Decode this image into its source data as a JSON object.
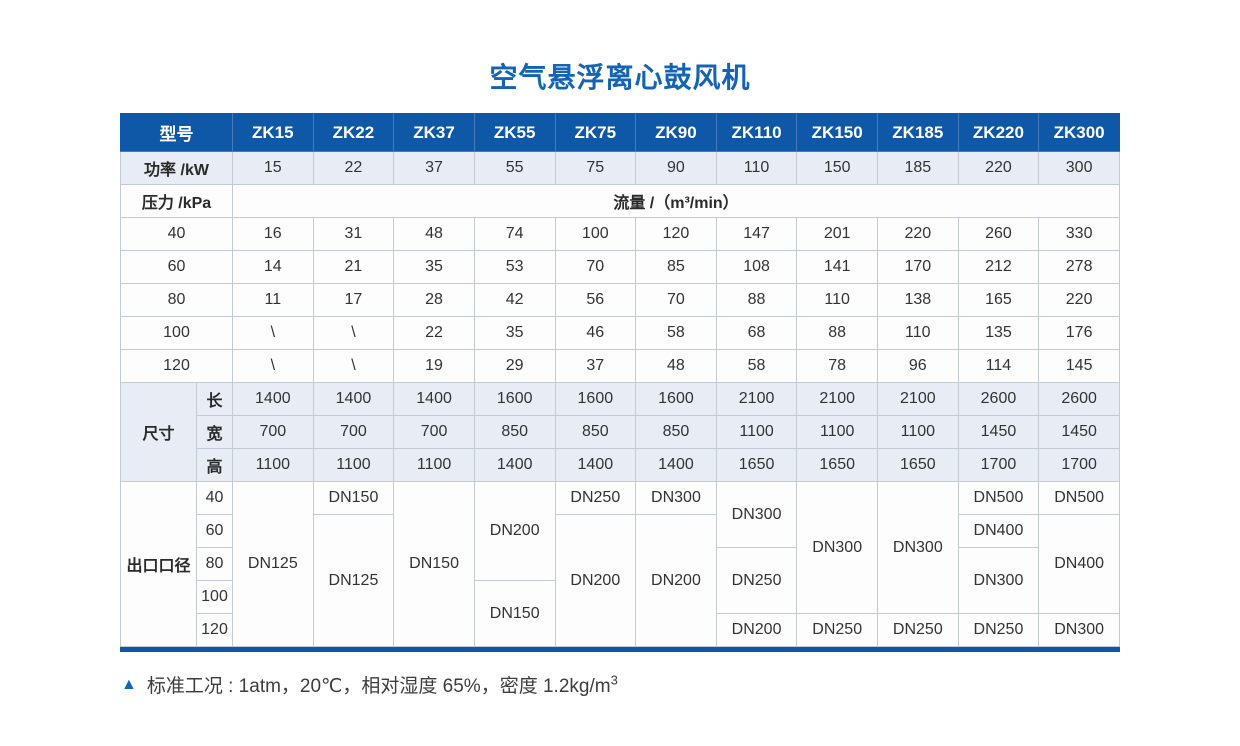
{
  "page": {
    "title": "空气悬浮离心鼓风机"
  },
  "colors": {
    "header_blue": "#0f57a7",
    "title_blue": "#1464b3",
    "row_highlight": "#e7ecf5",
    "cell_border": "#c1cad5",
    "bottom_bar": "#0f57a7",
    "body_text": "#333333"
  },
  "table": {
    "rows": [
      {
        "cls": "head",
        "cells": [
          {
            "t": "型号",
            "cs": 2
          },
          {
            "t": "ZK15"
          },
          {
            "t": "ZK22"
          },
          {
            "t": "ZK37"
          },
          {
            "t": "ZK55"
          },
          {
            "t": "ZK75"
          },
          {
            "t": "ZK90"
          },
          {
            "t": "ZK110"
          },
          {
            "t": "ZK150"
          },
          {
            "t": "ZK185"
          },
          {
            "t": "ZK220"
          },
          {
            "t": "ZK300"
          }
        ]
      },
      {
        "cls": "alt",
        "cells": [
          {
            "t": "功率 /kW",
            "cs": 2,
            "c": "lbl"
          },
          "15",
          "22",
          "37",
          "55",
          "75",
          "90",
          "110",
          "150",
          "185",
          "220",
          "300"
        ]
      },
      {
        "cells": [
          {
            "t": "压力 /kPa",
            "cs": 2,
            "c": "lbl"
          },
          {
            "t": "流量 /（m³/min）",
            "cs": 11,
            "c": "lbl"
          }
        ]
      },
      {
        "cells": [
          {
            "t": "40",
            "cs": 2
          },
          "16",
          "31",
          "48",
          "74",
          "100",
          "120",
          "147",
          "201",
          "220",
          "260",
          "330"
        ]
      },
      {
        "cells": [
          {
            "t": "60",
            "cs": 2
          },
          "14",
          "21",
          "35",
          "53",
          "70",
          "85",
          "108",
          "141",
          "170",
          "212",
          "278"
        ]
      },
      {
        "cells": [
          {
            "t": "80",
            "cs": 2
          },
          "11",
          "17",
          "28",
          "42",
          "56",
          "70",
          "88",
          "110",
          "138",
          "165",
          "220"
        ]
      },
      {
        "cells": [
          {
            "t": "100",
            "cs": 2
          },
          "\\",
          "\\",
          "22",
          "35",
          "46",
          "58",
          "68",
          "88",
          "110",
          "135",
          "176"
        ]
      },
      {
        "cells": [
          {
            "t": "120",
            "cs": 2
          },
          "\\",
          "\\",
          "19",
          "29",
          "37",
          "48",
          "58",
          "78",
          "96",
          "114",
          "145"
        ]
      },
      {
        "cls": "alt",
        "cells": [
          {
            "t": "尺寸",
            "rs": 3,
            "c": "lbl"
          },
          {
            "t": "长",
            "c": "lbl"
          },
          "1400",
          "1400",
          "1400",
          "1600",
          "1600",
          "1600",
          "2100",
          "2100",
          "2100",
          "2600",
          "2600"
        ]
      },
      {
        "cls": "alt",
        "cells": [
          {
            "t": "宽",
            "c": "lbl"
          },
          "700",
          "700",
          "700",
          "850",
          "850",
          "850",
          "1100",
          "1100",
          "1100",
          "1450",
          "1450"
        ]
      },
      {
        "cls": "alt",
        "cells": [
          {
            "t": "高",
            "c": "lbl"
          },
          "1100",
          "1100",
          "1100",
          "1400",
          "1400",
          "1400",
          "1650",
          "1650",
          "1650",
          "1700",
          "1700"
        ]
      },
      {
        "cells": [
          {
            "t": "出口口径",
            "rs": 5,
            "c": "lbl"
          },
          {
            "t": "40"
          },
          {
            "t": "DN125",
            "rs": 5
          },
          {
            "t": "DN150"
          },
          {
            "t": "DN150",
            "rs": 5
          },
          {
            "t": "DN200",
            "rs": 3
          },
          {
            "t": "DN250"
          },
          {
            "t": "DN300"
          },
          {
            "t": "DN300",
            "rs": 2
          },
          {
            "t": "DN300",
            "rs": 4
          },
          {
            "t": "DN300",
            "rs": 4
          },
          {
            "t": "DN500"
          },
          {
            "t": "DN500"
          }
        ]
      },
      {
        "cells": [
          {
            "t": "60"
          },
          {
            "t": "DN125",
            "rs": 4
          },
          {
            "t": "DN200",
            "rs": 4
          },
          {
            "t": "DN200",
            "rs": 4
          },
          {
            "t": "DN400"
          },
          {
            "t": "DN400",
            "rs": 3
          }
        ]
      },
      {
        "cells": [
          {
            "t": "80"
          },
          {
            "t": "DN250",
            "rs": 2
          },
          {
            "t": "DN300",
            "rs": 2
          }
        ]
      },
      {
        "cells": [
          {
            "t": "100"
          },
          {
            "t": "DN150",
            "rs": 2
          }
        ]
      },
      {
        "cells": [
          {
            "t": "120"
          },
          {
            "t": "DN200"
          },
          {
            "t": "DN250"
          },
          {
            "t": "DN250"
          },
          {
            "t": "DN250"
          },
          {
            "t": "DN300"
          }
        ]
      }
    ]
  },
  "footnote": {
    "marker": "▲",
    "text": "标准工况 : 1atm，20℃，相对湿度 65%，密度 1.2kg/m",
    "superscript": "3"
  }
}
